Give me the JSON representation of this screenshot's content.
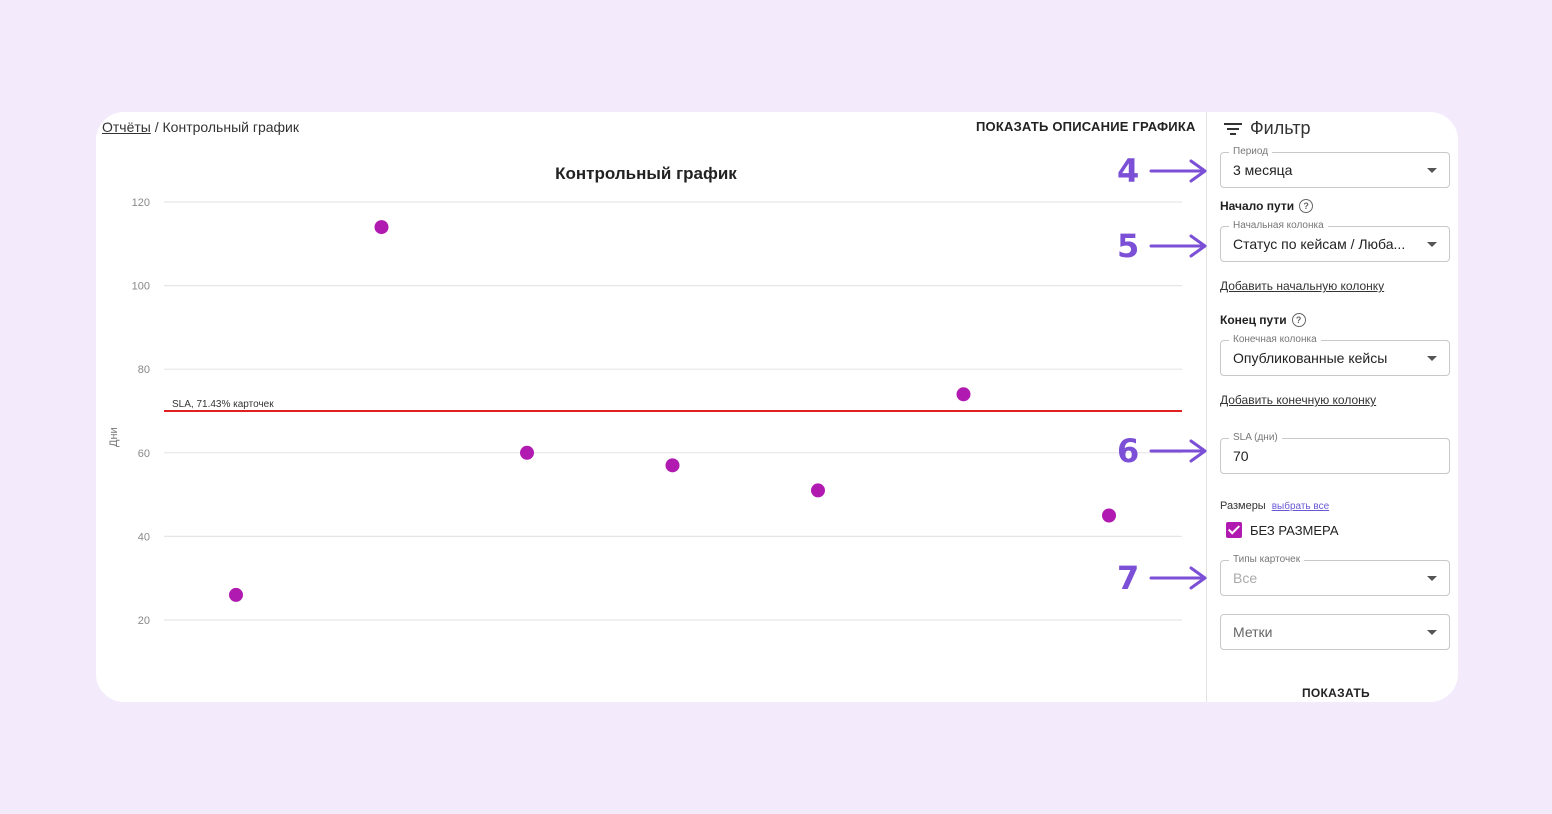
{
  "breadcrumb": {
    "root": "Отчёты",
    "separator": " / ",
    "current": "Контрольный график"
  },
  "header": {
    "show_description": "ПОКАЗАТЬ ОПИСАНИЕ ГРАФИКА"
  },
  "chart_data": {
    "type": "scatter",
    "title": "Контрольный график",
    "ylabel": "Дни",
    "xlabel": "",
    "ylim": [
      0,
      125
    ],
    "yticks": [
      120,
      100,
      80,
      60,
      40,
      20
    ],
    "grid": true,
    "x": [
      1,
      2,
      3,
      4,
      5,
      6,
      7
    ],
    "y": [
      26,
      114,
      60,
      57,
      51,
      74,
      45
    ],
    "point_color": "#b01ab0",
    "sla": {
      "value": 70,
      "label": "SLA, 71.43% карточек",
      "color": "#e02020"
    }
  },
  "filter": {
    "title": "Фильтр",
    "period": {
      "label": "Период",
      "value": "3 месяца"
    },
    "start_section": "Начало пути",
    "start_column": {
      "label": "Начальная колонка",
      "value": "Статус по кейсам / Люба..."
    },
    "add_start": "Добавить начальную колонку",
    "end_section": "Конец пути",
    "end_column": {
      "label": "Конечная колонка",
      "value": "Опубликованные кейсы"
    },
    "add_end": "Добавить конечную колонку",
    "sla": {
      "label": "SLA (дни)",
      "value": "70"
    },
    "sizes_label": "Размеры",
    "select_all": "выбрать все",
    "no_size": "БЕЗ РАЗМЕРА",
    "card_types": {
      "label": "Типы карточек",
      "value": "Все"
    },
    "tags": {
      "placeholder": "Метки"
    },
    "show_button": "ПОКАЗАТЬ"
  },
  "annotations": [
    "4",
    "5",
    "6",
    "7"
  ],
  "colors": {
    "accent": "#7b4fd6",
    "background": "#f3eafc",
    "checkbox": "#b01ab0"
  }
}
